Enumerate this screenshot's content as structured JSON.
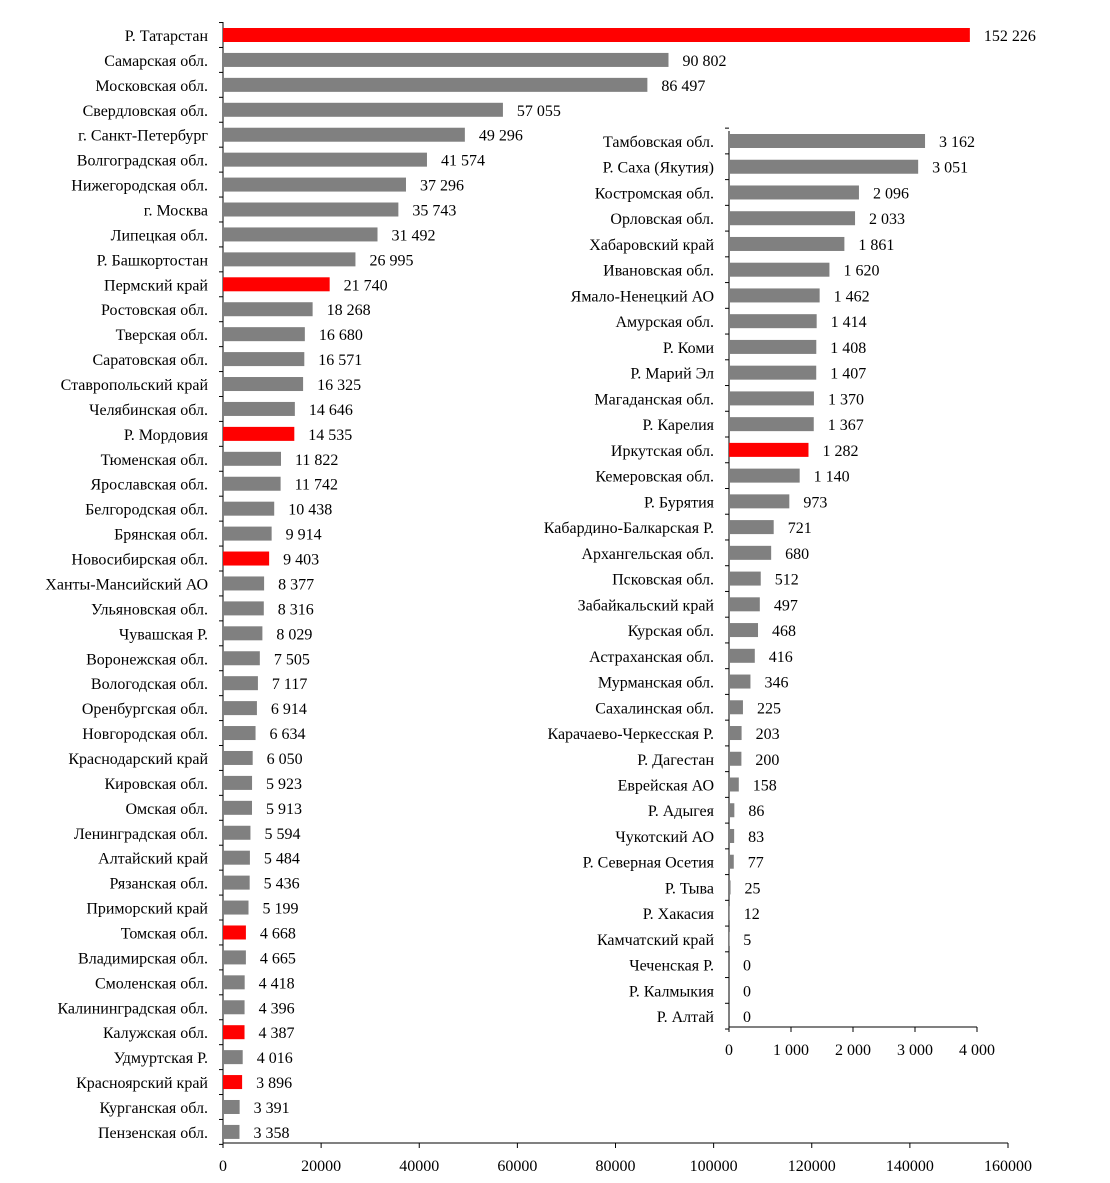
{
  "colors": {
    "highlight": "#ff0000",
    "bar": "#808080",
    "axis": "#000000",
    "text": "#000000"
  },
  "chart_data": [
    {
      "type": "bar",
      "orientation": "horizontal",
      "xlim": [
        0,
        160000
      ],
      "ticks": [
        0,
        20000,
        40000,
        60000,
        80000,
        100000,
        120000,
        140000,
        160000
      ],
      "tick_labels": [
        "0",
        "20000",
        "40000",
        "60000",
        "80000",
        "100000",
        "120000",
        "140000",
        "160000"
      ],
      "grid": false,
      "items": [
        {
          "label": "Р. Татарстан",
          "value": 152226,
          "value_label": "152 226",
          "highlight": true
        },
        {
          "label": "Самарская обл.",
          "value": 90802,
          "value_label": "90 802",
          "highlight": false
        },
        {
          "label": "Московская обл.",
          "value": 86497,
          "value_label": "86 497",
          "highlight": false
        },
        {
          "label": "Свердловская обл.",
          "value": 57055,
          "value_label": "57 055",
          "highlight": false
        },
        {
          "label": "г. Санкт-Петербург",
          "value": 49296,
          "value_label": "49 296",
          "highlight": false
        },
        {
          "label": "Волгоградская обл.",
          "value": 41574,
          "value_label": "41 574",
          "highlight": false
        },
        {
          "label": "Нижегородская обл.",
          "value": 37296,
          "value_label": "37 296",
          "highlight": false
        },
        {
          "label": "г. Москва",
          "value": 35743,
          "value_label": "35 743",
          "highlight": false
        },
        {
          "label": "Липецкая обл.",
          "value": 31492,
          "value_label": "31 492",
          "highlight": false
        },
        {
          "label": "Р. Башкортостан",
          "value": 26995,
          "value_label": "26 995",
          "highlight": false
        },
        {
          "label": "Пермский край",
          "value": 21740,
          "value_label": "21 740",
          "highlight": true
        },
        {
          "label": "Ростовская обл.",
          "value": 18268,
          "value_label": "18 268",
          "highlight": false
        },
        {
          "label": "Тверская обл.",
          "value": 16680,
          "value_label": "16 680",
          "highlight": false
        },
        {
          "label": "Саратовская обл.",
          "value": 16571,
          "value_label": "16 571",
          "highlight": false
        },
        {
          "label": "Ставропольский край",
          "value": 16325,
          "value_label": "16 325",
          "highlight": false
        },
        {
          "label": "Челябинская обл.",
          "value": 14646,
          "value_label": "14 646",
          "highlight": false
        },
        {
          "label": "Р. Мордовия",
          "value": 14535,
          "value_label": "14 535",
          "highlight": true
        },
        {
          "label": "Тюменская обл.",
          "value": 11822,
          "value_label": "11 822",
          "highlight": false
        },
        {
          "label": "Ярославская обл.",
          "value": 11742,
          "value_label": "11 742",
          "highlight": false
        },
        {
          "label": "Белгородская обл.",
          "value": 10438,
          "value_label": "10 438",
          "highlight": false
        },
        {
          "label": "Брянская обл.",
          "value": 9914,
          "value_label": "9 914",
          "highlight": false
        },
        {
          "label": "Новосибирская обл.",
          "value": 9403,
          "value_label": "9 403",
          "highlight": true
        },
        {
          "label": "Ханты-Мансийский АО",
          "value": 8377,
          "value_label": "8 377",
          "highlight": false
        },
        {
          "label": "Ульяновская обл.",
          "value": 8316,
          "value_label": "8 316",
          "highlight": false
        },
        {
          "label": "Чувашская Р.",
          "value": 8029,
          "value_label": "8 029",
          "highlight": false
        },
        {
          "label": "Воронежская обл.",
          "value": 7505,
          "value_label": "7 505",
          "highlight": false
        },
        {
          "label": "Вологодская обл.",
          "value": 7117,
          "value_label": "7 117",
          "highlight": false
        },
        {
          "label": "Оренбургская обл.",
          "value": 6914,
          "value_label": "6 914",
          "highlight": false
        },
        {
          "label": "Новгородская обл.",
          "value": 6634,
          "value_label": "6 634",
          "highlight": false
        },
        {
          "label": "Краснодарский край",
          "value": 6050,
          "value_label": "6 050",
          "highlight": false
        },
        {
          "label": "Кировская обл.",
          "value": 5923,
          "value_label": "5 923",
          "highlight": false
        },
        {
          "label": "Омская обл.",
          "value": 5913,
          "value_label": "5 913",
          "highlight": false
        },
        {
          "label": "Ленинградская обл.",
          "value": 5594,
          "value_label": "5 594",
          "highlight": false
        },
        {
          "label": "Алтайский край",
          "value": 5484,
          "value_label": "5 484",
          "highlight": false
        },
        {
          "label": "Рязанская обл.",
          "value": 5436,
          "value_label": "5 436",
          "highlight": false
        },
        {
          "label": "Приморский край",
          "value": 5199,
          "value_label": "5 199",
          "highlight": false
        },
        {
          "label": "Томская обл.",
          "value": 4668,
          "value_label": "4 668",
          "highlight": true
        },
        {
          "label": "Владимирская обл.",
          "value": 4665,
          "value_label": "4 665",
          "highlight": false
        },
        {
          "label": "Смоленская обл.",
          "value": 4418,
          "value_label": "4 418",
          "highlight": false
        },
        {
          "label": "Калининградская обл.",
          "value": 4396,
          "value_label": "4 396",
          "highlight": false
        },
        {
          "label": "Калужская обл.",
          "value": 4387,
          "value_label": "4 387",
          "highlight": true
        },
        {
          "label": "Удмуртская Р.",
          "value": 4016,
          "value_label": "4 016",
          "highlight": false
        },
        {
          "label": "Красноярский край",
          "value": 3896,
          "value_label": "3 896",
          "highlight": true
        },
        {
          "label": "Курганская обл.",
          "value": 3391,
          "value_label": "3 391",
          "highlight": false
        },
        {
          "label": "Пензенская обл.",
          "value": 3358,
          "value_label": "3 358",
          "highlight": false
        }
      ]
    },
    {
      "type": "bar",
      "orientation": "horizontal",
      "xlim": [
        0,
        4000
      ],
      "ticks": [
        0,
        1000,
        2000,
        3000,
        4000
      ],
      "tick_labels": [
        "0",
        "1 000",
        "2 000",
        "3 000",
        "4 000"
      ],
      "grid": false,
      "items": [
        {
          "label": "Тамбовская обл.",
          "value": 3162,
          "value_label": "3 162",
          "highlight": false
        },
        {
          "label": "Р. Саха (Якутия)",
          "value": 3051,
          "value_label": "3 051",
          "highlight": false
        },
        {
          "label": "Костромская обл.",
          "value": 2096,
          "value_label": "2 096",
          "highlight": false
        },
        {
          "label": "Орловская обл.",
          "value": 2033,
          "value_label": "2 033",
          "highlight": false
        },
        {
          "label": "Хабаровский край",
          "value": 1861,
          "value_label": "1 861",
          "highlight": false
        },
        {
          "label": "Ивановская обл.",
          "value": 1620,
          "value_label": "1 620",
          "highlight": false
        },
        {
          "label": "Ямало-Ненецкий АО",
          "value": 1462,
          "value_label": "1 462",
          "highlight": false
        },
        {
          "label": "Амурская обл.",
          "value": 1414,
          "value_label": "1 414",
          "highlight": false
        },
        {
          "label": "Р. Коми",
          "value": 1408,
          "value_label": "1 408",
          "highlight": false
        },
        {
          "label": "Р. Марий Эл",
          "value": 1407,
          "value_label": "1 407",
          "highlight": false
        },
        {
          "label": "Магаданская обл.",
          "value": 1370,
          "value_label": "1 370",
          "highlight": false
        },
        {
          "label": "Р. Карелия",
          "value": 1367,
          "value_label": "1 367",
          "highlight": false
        },
        {
          "label": "Иркутская обл.",
          "value": 1282,
          "value_label": "1 282",
          "highlight": true
        },
        {
          "label": "Кемеровская обл.",
          "value": 1140,
          "value_label": "1 140",
          "highlight": false
        },
        {
          "label": "Р. Бурятия",
          "value": 973,
          "value_label": "973",
          "highlight": false
        },
        {
          "label": "Кабардино-Балкарская Р.",
          "value": 721,
          "value_label": "721",
          "highlight": false
        },
        {
          "label": "Архангельская обл.",
          "value": 680,
          "value_label": "680",
          "highlight": false
        },
        {
          "label": "Псковская обл.",
          "value": 512,
          "value_label": "512",
          "highlight": false
        },
        {
          "label": "Забайкальский край",
          "value": 497,
          "value_label": "497",
          "highlight": false
        },
        {
          "label": "Курская обл.",
          "value": 468,
          "value_label": "468",
          "highlight": false
        },
        {
          "label": "Астраханская обл.",
          "value": 416,
          "value_label": "416",
          "highlight": false
        },
        {
          "label": "Мурманская обл.",
          "value": 346,
          "value_label": "346",
          "highlight": false
        },
        {
          "label": "Сахалинская обл.",
          "value": 225,
          "value_label": "225",
          "highlight": false
        },
        {
          "label": "Карачаево-Черкесская Р.",
          "value": 203,
          "value_label": "203",
          "highlight": false
        },
        {
          "label": "Р. Дагестан",
          "value": 200,
          "value_label": "200",
          "highlight": false
        },
        {
          "label": "Еврейская АО",
          "value": 158,
          "value_label": "158",
          "highlight": false
        },
        {
          "label": "Р. Адыгея",
          "value": 86,
          "value_label": "86",
          "highlight": false
        },
        {
          "label": "Чукотский АО",
          "value": 83,
          "value_label": "83",
          "highlight": false
        },
        {
          "label": "Р. Северная  Осетия",
          "value": 77,
          "value_label": "77",
          "highlight": false
        },
        {
          "label": "Р. Тыва",
          "value": 25,
          "value_label": "25",
          "highlight": false
        },
        {
          "label": "Р. Хакасия",
          "value": 12,
          "value_label": "12",
          "highlight": false
        },
        {
          "label": "Камчатский край",
          "value": 5,
          "value_label": "5",
          "highlight": false
        },
        {
          "label": "Чеченская Р.",
          "value": 0,
          "value_label": "0",
          "highlight": false
        },
        {
          "label": "Р. Калмыкия",
          "value": 0,
          "value_label": "0",
          "highlight": false
        },
        {
          "label": "Р. Алтай",
          "value": 0,
          "value_label": "0",
          "highlight": false
        }
      ]
    }
  ]
}
